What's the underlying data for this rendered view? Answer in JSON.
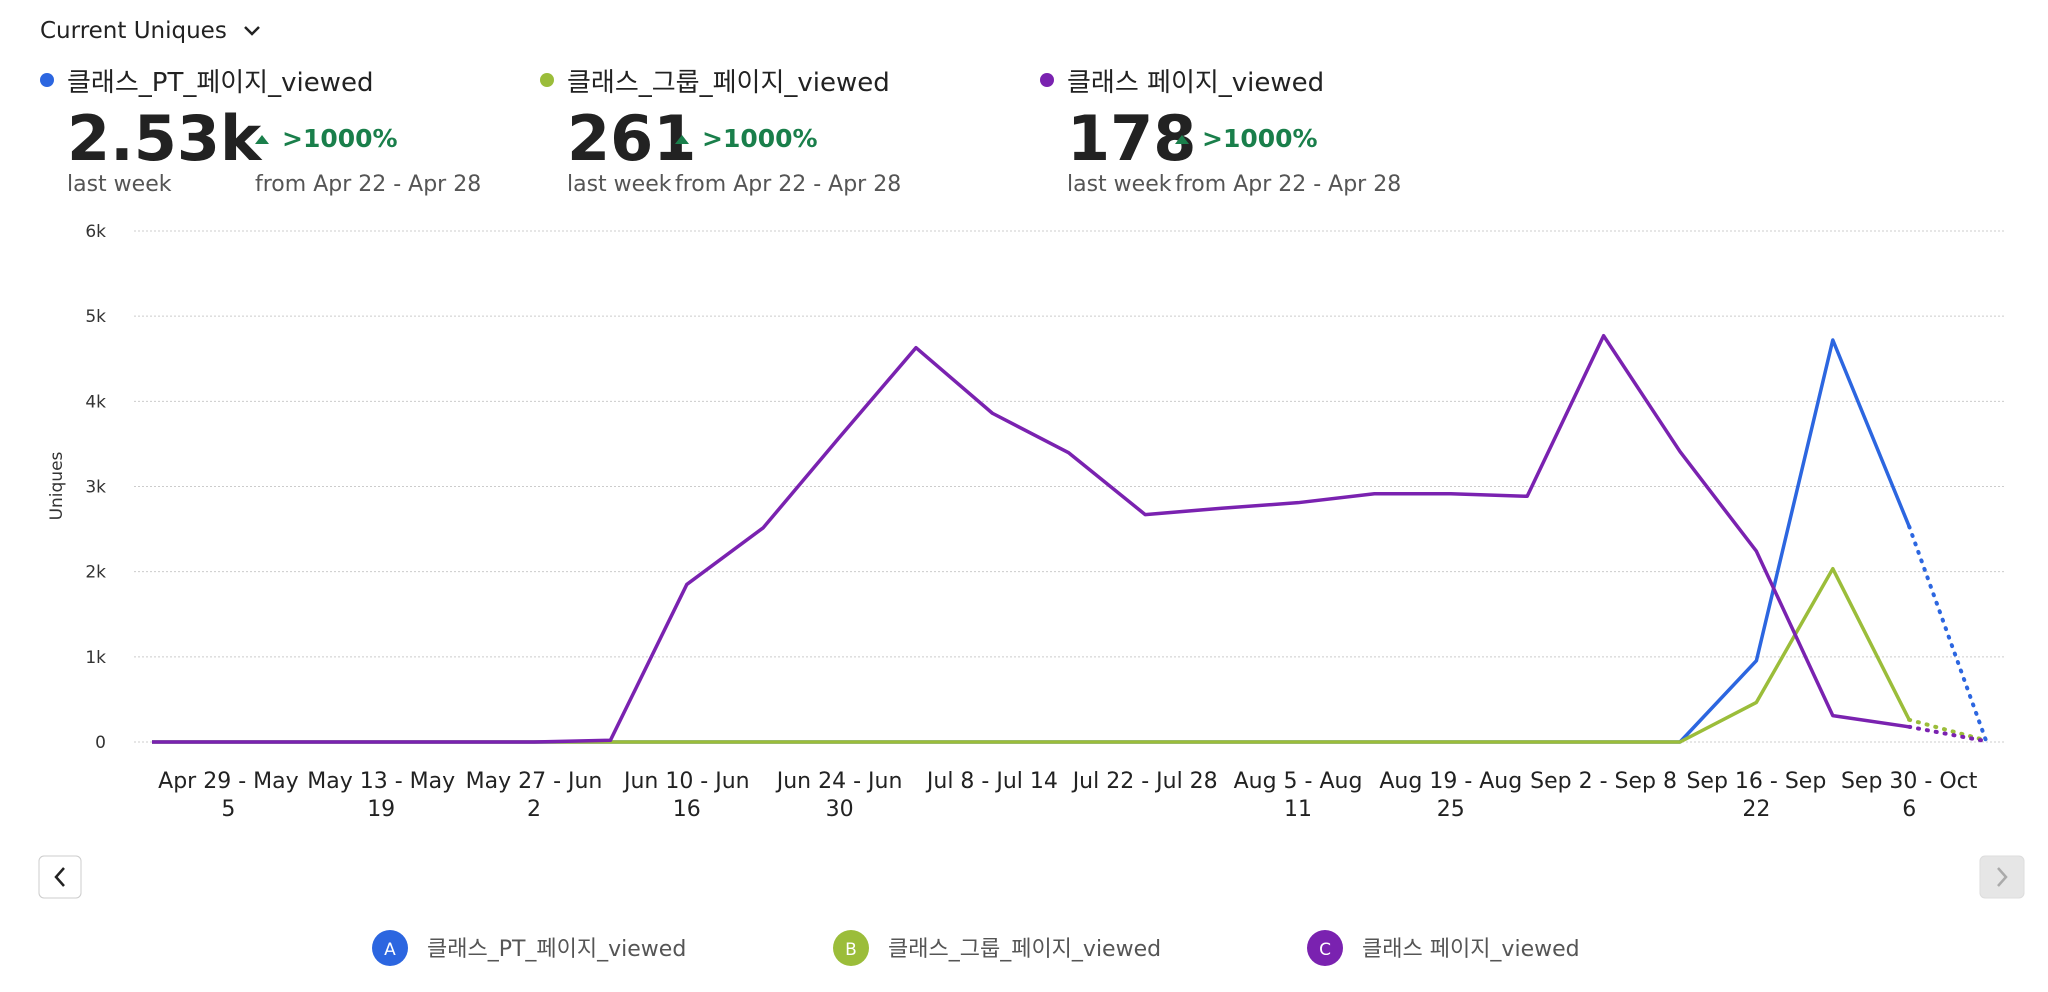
{
  "metric_selector": "Current Uniques",
  "cards": [
    {
      "name": "클래스_PT_페이지_viewed",
      "value": "2.53k",
      "change": ">1000%",
      "period": "last week",
      "compare": "from Apr 22 - Apr 28"
    },
    {
      "name": "클래스_그룹_페이지_viewed",
      "value": "261",
      "change": ">1000%",
      "period": "last week",
      "compare": "from Apr 22 - Apr 28"
    },
    {
      "name": "클래스 페이지_viewed",
      "value": "178",
      "change": ">1000%",
      "period": "last week",
      "compare": "from Apr 22 - Apr 28"
    }
  ],
  "legend_letters": [
    "A",
    "B",
    "C"
  ],
  "chart_data": {
    "type": "line",
    "y_label": "Uniques",
    "categories": [
      null,
      "Apr 29 - May 5",
      null,
      "May 13 - May 19",
      null,
      "May 27 - Jun 2",
      null,
      "Jun 10 - Jun 16",
      null,
      "Jun 24 - Jun 30",
      null,
      "Jul 8 - Jul 14",
      null,
      "Jul 22 - Jul 28",
      null,
      "Aug 5 - Aug 11",
      null,
      "Aug 19 - Aug 25",
      null,
      "Sep 2 - Sep 8",
      null,
      "Sep 16 - Sep 22",
      null,
      "Sep 30 - Oct 6",
      null
    ],
    "series": [
      {
        "name": "클래스_PT_페이지_viewed",
        "color": "#2c66e0",
        "values": [
          0,
          0,
          0,
          0,
          0,
          0,
          0,
          0,
          0,
          0,
          0,
          0,
          0,
          0,
          0,
          0,
          0,
          0,
          0,
          0,
          0,
          955,
          4720,
          2530,
          30
        ]
      },
      {
        "name": "클래스_그룹_페이지_viewed",
        "color": "#9bbd3a",
        "values": [
          0,
          0,
          0,
          0,
          0,
          0,
          0,
          0,
          0,
          0,
          0,
          0,
          0,
          0,
          0,
          0,
          0,
          0,
          0,
          0,
          0,
          465,
          2035,
          261,
          20
        ]
      },
      {
        "name": "클래스 페이지_viewed",
        "color": "#7a22b0",
        "values": [
          0,
          0,
          0,
          0,
          0,
          0,
          20,
          1850,
          2515,
          3580,
          4630,
          3860,
          3395,
          2670,
          2745,
          2810,
          2915,
          2915,
          2885,
          4770,
          3410,
          2240,
          310,
          178,
          10
        ]
      }
    ],
    "ylim": [
      0,
      6000
    ],
    "yticks": [
      0,
      {
        "value": 1000,
        "label": "1k"
      },
      {
        "value": 2000,
        "label": "2k"
      },
      {
        "value": 3000,
        "label": "3k"
      },
      {
        "value": 4000,
        "label": "4k"
      },
      {
        "value": 5000,
        "label": "5k"
      },
      {
        "value": 6000,
        "label": "6k"
      }
    ],
    "grid": true,
    "dotted_last_segment": true
  }
}
